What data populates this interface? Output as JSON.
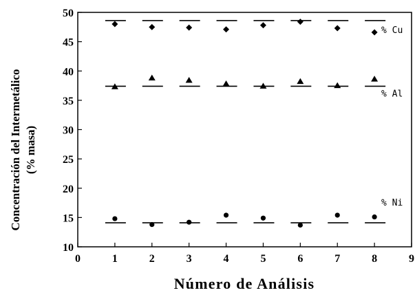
{
  "chart_data": {
    "type": "scatter",
    "title": "",
    "xlabel": "Número de Análisis",
    "ylabel": [
      "Concentración del Intermetálico",
      "(% masa)"
    ],
    "xlim": [
      0,
      9
    ],
    "ylim": [
      10,
      50
    ],
    "xticks": [
      0,
      1,
      2,
      3,
      4,
      5,
      6,
      7,
      8,
      9
    ],
    "yticks": [
      10,
      15,
      20,
      25,
      30,
      35,
      40,
      45,
      50
    ],
    "grid": false,
    "x": [
      1,
      2,
      3,
      4,
      5,
      6,
      7,
      8
    ],
    "series": [
      {
        "name": "% Cu",
        "marker": "diamond",
        "values": [
          48.0,
          47.5,
          47.4,
          47.1,
          47.8,
          48.4,
          47.3,
          46.6
        ],
        "reference": 48.6
      },
      {
        "name": "% Al",
        "marker": "triangle",
        "values": [
          37.3,
          38.8,
          38.4,
          37.8,
          37.4,
          38.2,
          37.5,
          38.6
        ],
        "reference": 37.4
      },
      {
        "name": "% Ni",
        "marker": "circle",
        "values": [
          14.8,
          13.8,
          14.2,
          15.4,
          14.9,
          13.7,
          15.4,
          15.1
        ],
        "reference": 14.1
      }
    ]
  }
}
